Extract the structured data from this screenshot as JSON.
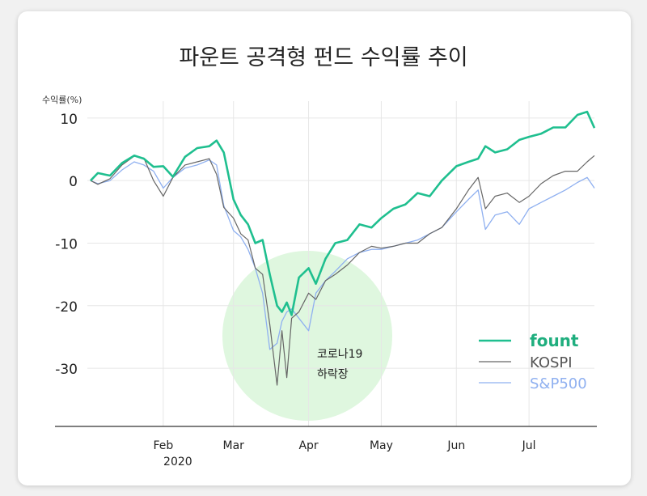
{
  "chart_data": {
    "type": "line",
    "title": "파운트 공격형 펀드 수익률 추이",
    "ylabel": "수익률(%)",
    "xlabel": "",
    "ylim": [
      -39.3,
      12.7
    ],
    "yticks": [
      10,
      0,
      -10,
      -20,
      -30
    ],
    "xticks": [
      {
        "date": "2020-02-01",
        "label": "Feb",
        "sublabel": "2020"
      },
      {
        "date": "2020-03-01",
        "label": "Mar"
      },
      {
        "date": "2020-04-01",
        "label": "Apr"
      },
      {
        "date": "2020-05-01",
        "label": "May"
      },
      {
        "date": "2020-06-01",
        "label": "Jun"
      },
      {
        "date": "2020-07-01",
        "label": "Jul"
      }
    ],
    "grid": true,
    "legend_position": "bottom-right",
    "annotation": {
      "lines": [
        "코로나19",
        "하락장"
      ],
      "highlight_color": "#dff7df"
    },
    "x": [
      "2020-01-02",
      "2020-01-05",
      "2020-01-10",
      "2020-01-15",
      "2020-01-20",
      "2020-01-24",
      "2020-01-28",
      "2020-02-01",
      "2020-02-05",
      "2020-02-10",
      "2020-02-15",
      "2020-02-20",
      "2020-02-23",
      "2020-02-26",
      "2020-03-01",
      "2020-03-04",
      "2020-03-07",
      "2020-03-10",
      "2020-03-13",
      "2020-03-16",
      "2020-03-19",
      "2020-03-21",
      "2020-03-23",
      "2020-03-25",
      "2020-03-28",
      "2020-04-01",
      "2020-04-04",
      "2020-04-08",
      "2020-04-12",
      "2020-04-17",
      "2020-04-22",
      "2020-04-27",
      "2020-05-01",
      "2020-05-06",
      "2020-05-11",
      "2020-05-16",
      "2020-05-21",
      "2020-05-26",
      "2020-06-01",
      "2020-06-06",
      "2020-06-10",
      "2020-06-13",
      "2020-06-17",
      "2020-06-22",
      "2020-06-27",
      "2020-07-01",
      "2020-07-06",
      "2020-07-11",
      "2020-07-16",
      "2020-07-21",
      "2020-07-25",
      "2020-07-28"
    ],
    "series": [
      {
        "name": "fount",
        "color": "#1fbf8f",
        "values": [
          0,
          1.2,
          0.8,
          2.8,
          4,
          3.5,
          2.2,
          2.3,
          0.6,
          3.8,
          5.2,
          5.5,
          6.4,
          4.5,
          -3,
          -5.5,
          -7,
          -10,
          -9.5,
          -15,
          -20,
          -21,
          -19.5,
          -21.5,
          -15.5,
          -14,
          -16.5,
          -12.5,
          -10,
          -9.5,
          -7,
          -7.5,
          -6,
          -4.5,
          -3.8,
          -2,
          -2.5,
          0,
          2.3,
          3,
          3.5,
          5.5,
          4.5,
          5,
          6.5,
          7,
          7.5,
          8.5,
          8.5,
          10.5,
          11,
          8.4
        ]
      },
      {
        "name": "KOSPI",
        "color": "#666666",
        "values": [
          0,
          -0.6,
          0.3,
          2.5,
          3.9,
          3.6,
          0,
          -2.5,
          0.5,
          2.5,
          3,
          3.5,
          1,
          -4.3,
          -6,
          -8.5,
          -9.5,
          -14,
          -15,
          -23,
          -32.7,
          -24,
          -31.5,
          -22,
          -21,
          -18,
          -19,
          -16,
          -15,
          -13.5,
          -11.5,
          -10.5,
          -10.8,
          -10.5,
          -10,
          -10,
          -8.5,
          -7.5,
          -4.5,
          -1.5,
          0.5,
          -4.5,
          -2.5,
          -2,
          -3.5,
          -2.5,
          -0.5,
          0.8,
          1.5,
          1.5,
          3,
          4
        ]
      },
      {
        "name": "S&P500",
        "color": "#8fb0f0",
        "values": [
          0,
          -0.5,
          0,
          1.7,
          3,
          2.5,
          1.5,
          -1.2,
          0.5,
          2,
          2.5,
          3.3,
          2.5,
          -4,
          -8,
          -9,
          -11,
          -14,
          -18,
          -27,
          -26,
          -22.5,
          -21,
          -20.5,
          -22,
          -24,
          -18,
          -16,
          -14.5,
          -12.5,
          -11.5,
          -11,
          -11,
          -10.5,
          -10,
          -9.5,
          -8.5,
          -7.5,
          -5,
          -3,
          -1.5,
          -7.8,
          -5.5,
          -5,
          -7,
          -4.5,
          -3.5,
          -2.5,
          -1.5,
          -0.3,
          0.5,
          -1.2
        ]
      }
    ]
  }
}
